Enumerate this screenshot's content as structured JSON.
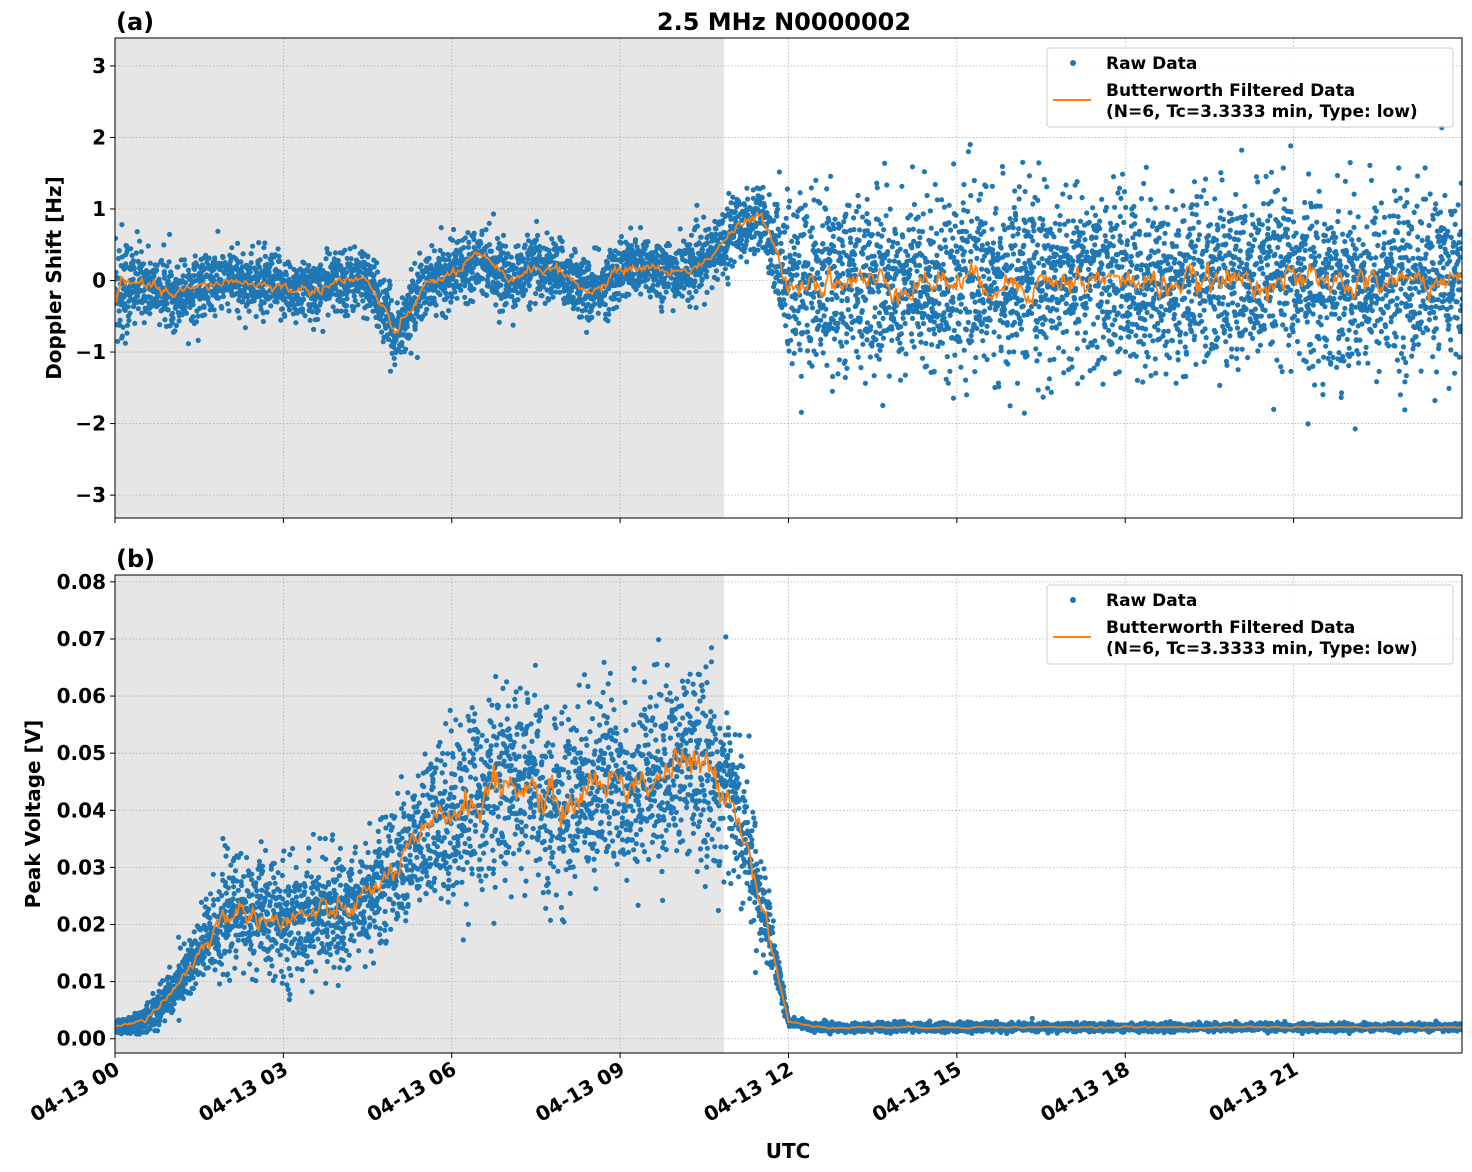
{
  "chart_data": [
    {
      "type": "scatter+line",
      "panel_label": "(a)",
      "title": "2.5 MHz N0000002",
      "ylabel": "Doppler Shift [Hz]",
      "xlabel": "",
      "xlim": [
        "04-13 00:00",
        "04-14 00:00"
      ],
      "ylim": [
        -3.32,
        3.39
      ],
      "yticks": [
        "3",
        "2",
        "1",
        "0",
        "−1",
        "−2",
        "−3"
      ],
      "ytick_values": [
        3,
        2,
        1,
        0,
        -1,
        -2,
        -3
      ],
      "xticks": [
        "04-13 00",
        "04-13 03",
        "04-13 06",
        "04-13 09",
        "04-13 12",
        "04-13 15",
        "04-13 18",
        "04-13 21"
      ],
      "grid": true,
      "shaded_span": [
        "04-13 00:00",
        "04-13 10:51"
      ],
      "legend": {
        "position": "top-right",
        "entries": [
          "Raw Data",
          "Butterworth Filtered Data\n(N=6, Tc=3.3333 min, Type: low)"
        ]
      },
      "series": [
        {
          "name": "Butterworth Filtered Data (N=6, Tc=3.3333 min, Type: low)",
          "kind": "line",
          "color": "#ff7f0e",
          "x": [
            "04-13 00:00",
            "04-13 00:30",
            "04-13 01:00",
            "04-13 01:30",
            "04-13 02:00",
            "04-13 02:30",
            "04-13 03:00",
            "04-13 03:30",
            "04-13 04:00",
            "04-13 04:30",
            "04-13 05:00",
            "04-13 05:30",
            "04-13 06:00",
            "04-13 06:30",
            "04-13 07:00",
            "04-13 07:30",
            "04-13 08:00",
            "04-13 08:30",
            "04-13 09:00",
            "04-13 09:30",
            "04-13 10:00",
            "04-13 10:30",
            "04-13 11:00",
            "04-13 11:30",
            "04-13 12:00",
            "04-13 13:00",
            "04-13 14:00",
            "04-13 15:00",
            "04-13 16:00",
            "04-13 17:00",
            "04-13 18:00",
            "04-13 19:00",
            "04-13 20:00",
            "04-13 21:00",
            "04-13 22:00",
            "04-13 23:00",
            "04-14 00:00"
          ],
          "y": [
            -0.1,
            -0.05,
            -0.2,
            -0.1,
            0.0,
            -0.05,
            -0.1,
            -0.15,
            0.0,
            0.0,
            -0.75,
            -0.1,
            0.1,
            0.35,
            0.0,
            0.2,
            0.1,
            -0.2,
            0.15,
            0.2,
            0.1,
            0.25,
            0.7,
            0.9,
            0.0,
            0.0,
            -0.05,
            0.0,
            -0.05,
            0.0,
            0.0,
            -0.05,
            0.0,
            0.0,
            -0.05,
            0.0,
            0.0
          ]
        },
        {
          "name": "Raw Data",
          "kind": "scatter",
          "color": "#1f77b4",
          "spread_std": {
            "x": [
              "04-13 00:00",
              "04-13 00:30",
              "04-13 10:30",
              "04-13 11:45",
              "04-13 12:00",
              "04-14 00:00"
            ],
            "y": [
              0.5,
              0.22,
              0.22,
              0.25,
              0.6,
              0.6
            ]
          }
        }
      ]
    },
    {
      "type": "scatter+line",
      "panel_label": "(b)",
      "title": "",
      "ylabel": "Peak Voltage [V]",
      "xlabel": "UTC",
      "xlim": [
        "04-13 00:00",
        "04-14 00:00"
      ],
      "ylim": [
        -0.0025,
        0.0812
      ],
      "yticks": [
        "0.08",
        "0.07",
        "0.06",
        "0.05",
        "0.04",
        "0.03",
        "0.02",
        "0.01",
        "0.00"
      ],
      "ytick_values": [
        0.08,
        0.07,
        0.06,
        0.05,
        0.04,
        0.03,
        0.02,
        0.01,
        0.0
      ],
      "xticks": [
        "04-13 00",
        "04-13 03",
        "04-13 06",
        "04-13 09",
        "04-13 12",
        "04-13 15",
        "04-13 18",
        "04-13 21"
      ],
      "grid": true,
      "shaded_span": [
        "04-13 00:00",
        "04-13 10:51"
      ],
      "legend": {
        "position": "top-right",
        "entries": [
          "Raw Data",
          "Butterworth Filtered Data\n(N=6, Tc=3.3333 min, Type: low)"
        ]
      },
      "series": [
        {
          "name": "Butterworth Filtered Data (N=6, Tc=3.3333 min, Type: low)",
          "kind": "line",
          "color": "#ff7f0e",
          "x": [
            "04-13 00:00",
            "04-13 00:30",
            "04-13 01:00",
            "04-13 01:30",
            "04-13 02:00",
            "04-13 02:30",
            "04-13 03:00",
            "04-13 03:30",
            "04-13 04:00",
            "04-13 04:30",
            "04-13 05:00",
            "04-13 05:30",
            "04-13 06:00",
            "04-13 06:30",
            "04-13 07:00",
            "04-13 07:30",
            "04-13 08:00",
            "04-13 08:30",
            "04-13 09:00",
            "04-13 09:30",
            "04-13 10:00",
            "04-13 10:30",
            "04-13 11:00",
            "04-13 11:30",
            "04-13 12:00",
            "04-13 12:30",
            "04-13 15:00",
            "04-13 18:00",
            "04-13 21:00",
            "04-14 00:00"
          ],
          "y": [
            0.002,
            0.003,
            0.008,
            0.015,
            0.022,
            0.022,
            0.02,
            0.022,
            0.022,
            0.025,
            0.03,
            0.035,
            0.04,
            0.042,
            0.045,
            0.043,
            0.04,
            0.045,
            0.045,
            0.045,
            0.048,
            0.047,
            0.043,
            0.025,
            0.003,
            0.002,
            0.002,
            0.002,
            0.002,
            0.002
          ]
        },
        {
          "name": "Raw Data",
          "kind": "scatter",
          "color": "#1f77b4",
          "spread_std": {
            "x": [
              "04-13 00:00",
              "04-13 01:00",
              "04-13 02:00",
              "04-13 05:00",
              "04-13 06:00",
              "04-13 11:00",
              "04-13 12:00",
              "04-14 00:00"
            ],
            "y": [
              0.0005,
              0.002,
              0.005,
              0.005,
              0.008,
              0.008,
              0.0004,
              0.0003
            ]
          }
        }
      ]
    }
  ]
}
